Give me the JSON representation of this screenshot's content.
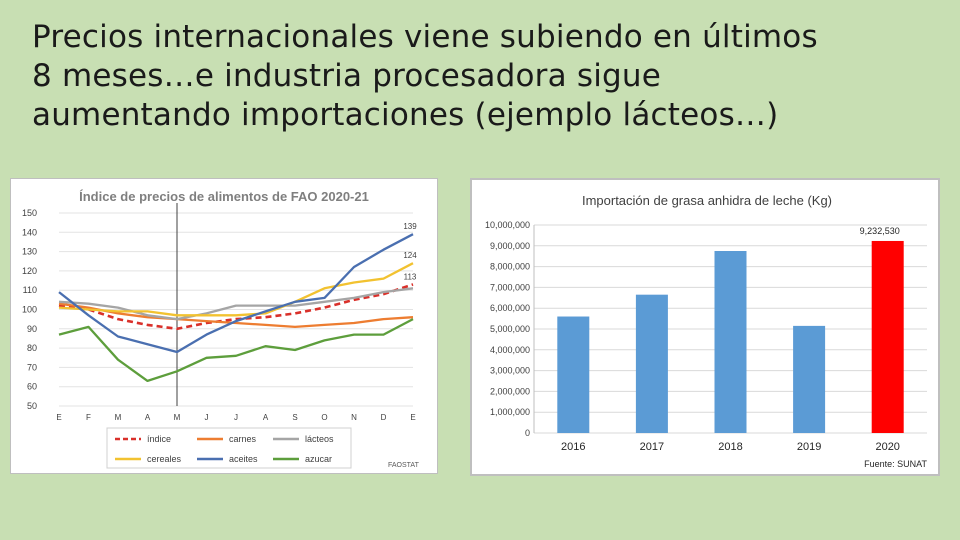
{
  "slide": {
    "title_lines": [
      "Precios internacionales viene subiendo en últimos",
      "8 meses…e industria procesadora sigue",
      "aumentando importaciones (ejemplo lácteos…)"
    ]
  },
  "chart_data": [
    {
      "type": "line",
      "title": "Índice de precios de alimentos de FAO 2020-21",
      "source": "FAOSTAT",
      "categories": [
        "E",
        "F",
        "M",
        "A",
        "M",
        "J",
        "J",
        "A",
        "S",
        "O",
        "N",
        "D",
        "E"
      ],
      "ylim": [
        50,
        150
      ],
      "yticks": [
        50,
        60,
        70,
        80,
        90,
        100,
        110,
        120,
        130,
        140,
        150
      ],
      "grid": true,
      "legend_position": "bottom",
      "divider_after_index": 4,
      "end_labels": [
        "139",
        "124",
        "113"
      ],
      "series": [
        {
          "name": "índice",
          "color": "#d9302a",
          "dashed": true,
          "values": [
            102,
            100,
            95,
            92,
            90,
            93,
            95,
            96,
            98,
            101,
            105,
            108,
            113
          ]
        },
        {
          "name": "carnes",
          "color": "#ed7d31",
          "values": [
            103,
            101,
            98,
            96,
            95,
            94,
            93,
            92,
            91,
            92,
            93,
            95,
            96
          ]
        },
        {
          "name": "lácteos",
          "color": "#a5a5a5",
          "values": [
            104,
            103,
            101,
            97,
            95,
            98,
            102,
            102,
            102,
            104,
            106,
            109,
            111
          ]
        },
        {
          "name": "cereales",
          "color": "#f2c230",
          "values": [
            101,
            100,
            99,
            99,
            97,
            97,
            97,
            98,
            104,
            111,
            114,
            116,
            124
          ]
        },
        {
          "name": "aceites",
          "color": "#4a6fb0",
          "values": [
            109,
            97,
            86,
            82,
            78,
            87,
            94,
            99,
            104,
            106,
            122,
            131,
            139
          ]
        },
        {
          "name": "azucar",
          "color": "#5d9e3c",
          "values": [
            87,
            91,
            74,
            63,
            68,
            75,
            76,
            81,
            79,
            84,
            87,
            87,
            95
          ]
        }
      ]
    },
    {
      "type": "bar",
      "title": "Importación de grasa anhidra de leche (Kg)",
      "source": "Fuente: SUNAT",
      "categories": [
        "2016",
        "2017",
        "2018",
        "2019",
        "2020"
      ],
      "values": [
        5600000,
        6650000,
        8750000,
        5150000,
        9232530
      ],
      "highlight_label": "9,232,530",
      "colors": [
        "#5b9bd5",
        "#5b9bd5",
        "#5b9bd5",
        "#5b9bd5",
        "#ff0000"
      ],
      "ylim": [
        0,
        10000000
      ],
      "yticks": [
        "0",
        "1,000,000",
        "2,000,000",
        "3,000,000",
        "4,000,000",
        "5,000,000",
        "6,000,000",
        "7,000,000",
        "8,000,000",
        "9,000,000",
        "10,000,000"
      ],
      "grid": true
    }
  ]
}
